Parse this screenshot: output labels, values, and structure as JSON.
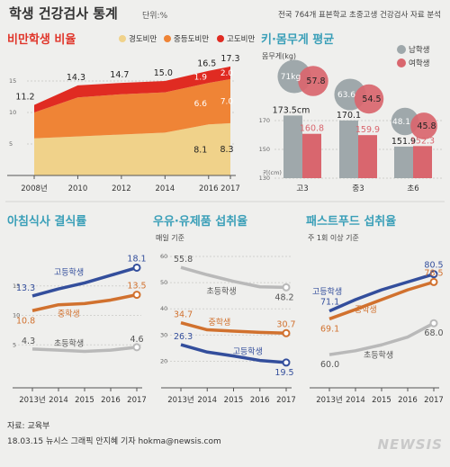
{
  "header": {
    "title": "학생 건강검사 통계",
    "unit": "단위:%",
    "source_note": "전국 764개 표본학교 초중고생 건강검사 자료 분석"
  },
  "footer": {
    "source": "자료: 교육부",
    "credit": "18.03.15 뉴시스 그래픽 안지혜 기자 hokma@newsis.com",
    "logo": "NEWSIS"
  },
  "colors": {
    "light": "#f0d28a",
    "mid": "#ef8436",
    "high": "#e02b22",
    "boys": "#9fa8ab",
    "girls": "#d9666e",
    "blue": "#334e9c",
    "orange": "#d1712e",
    "gray": "#b9b9b9",
    "cyan": "#2aa4c5",
    "pink": "#c95a62"
  },
  "chart_data": [
    {
      "id": "obesity",
      "type": "area",
      "title": "비만학생 비율",
      "x": [
        "2008년",
        "2010",
        "2012",
        "2014",
        "2016",
        "2017"
      ],
      "x_years": [
        2008,
        2010,
        2012,
        2014,
        2016,
        2017
      ],
      "stacked": true,
      "series": [
        {
          "name": "경도비만",
          "values": [
            5.9,
            6.2,
            6.5,
            6.8,
            8.1,
            8.3
          ]
        },
        {
          "name": "중등도비만",
          "values": [
            4.1,
            6.2,
            6.4,
            6.4,
            6.6,
            7.0
          ]
        },
        {
          "name": "고도비만",
          "values": [
            1.2,
            1.9,
            1.8,
            1.8,
            1.9,
            2.0
          ]
        }
      ],
      "totals": [
        11.2,
        14.3,
        14.7,
        15.0,
        16.5,
        17.3
      ],
      "total_labels": [
        "11.2",
        "14.3",
        "14.7",
        "15.0",
        "16.5",
        "17.3"
      ],
      "value_labels_2016": [
        "8.1",
        "6.6",
        "1.9"
      ],
      "value_labels_2017": [
        "8.3",
        "7.0",
        "2.0"
      ],
      "yticks": [
        5,
        10,
        15
      ],
      "ylim": [
        0,
        20
      ],
      "legend_position": "top"
    },
    {
      "id": "weight_height",
      "type": "bar",
      "title": "키·몸무게 평균",
      "subtitle": "몸무게(kg)",
      "height_unit": "키(cm)",
      "categories": [
        "고3",
        "중3",
        "초6"
      ],
      "height": {
        "boys": [
          173.5,
          170.1,
          151.9
        ],
        "girls": [
          160.8,
          159.9,
          152.3
        ],
        "boys_labels": [
          "173.5cm",
          "170.1",
          "151.9"
        ],
        "girls_labels": [
          "160.8",
          "159.9",
          "152.3"
        ]
      },
      "weight": {
        "boys": [
          71,
          63.6,
          48.1
        ],
        "girls": [
          57.8,
          54.5,
          45.8
        ],
        "boys_labels": [
          "71kg",
          "63.6",
          "48.1"
        ],
        "girls_labels": [
          "57.8",
          "54.5",
          "45.8"
        ]
      },
      "yticks": [
        130,
        150,
        170
      ],
      "ylim": [
        130,
        180
      ],
      "legend": [
        "남학생",
        "여학생"
      ],
      "legend_position": "top-right"
    },
    {
      "id": "breakfast",
      "type": "line",
      "title": "아침식사 결식률",
      "x": [
        "2013년",
        "2014",
        "2015",
        "2016",
        "2017"
      ],
      "series": [
        {
          "name": "고등학생",
          "values": [
            13.3,
            14.5,
            15.5,
            16.8,
            18.1
          ],
          "labels": [
            "13.3",
            "18.1"
          ]
        },
        {
          "name": "중학생",
          "values": [
            10.8,
            11.8,
            12.0,
            12.6,
            13.5
          ],
          "labels": [
            "10.8",
            "13.5"
          ]
        },
        {
          "name": "초등학생",
          "values": [
            4.3,
            4.1,
            3.9,
            4.1,
            4.6
          ],
          "labels": [
            "4.3",
            "4.6"
          ]
        }
      ],
      "yticks": [
        5,
        10,
        15
      ],
      "ylim": [
        0,
        20
      ]
    },
    {
      "id": "milk",
      "type": "line",
      "title": "우유·유제품 섭취율",
      "subtitle": "매일 기준",
      "x": [
        "2013년",
        "2014",
        "2015",
        "2016",
        "2017"
      ],
      "series": [
        {
          "name": "초등학생",
          "values": [
            55.8,
            53.0,
            50.5,
            48.4,
            48.2
          ],
          "labels": [
            "55.8",
            "48.2"
          ]
        },
        {
          "name": "중학생",
          "values": [
            34.7,
            32.0,
            31.5,
            31.0,
            30.7
          ],
          "labels": [
            "34.7",
            "30.7"
          ]
        },
        {
          "name": "고등학생",
          "values": [
            26.3,
            23.5,
            22.0,
            20.3,
            19.5
          ],
          "labels": [
            "26.3",
            "19.5"
          ]
        }
      ],
      "yticks": [
        20,
        30,
        40,
        50,
        60
      ],
      "ylim": [
        15,
        60
      ]
    },
    {
      "id": "fastfood",
      "type": "line",
      "title": "패스트푸드 섭취율",
      "subtitle": "주 1회 이상 기준",
      "x": [
        "2013년",
        "2014",
        "2015",
        "2016",
        "2017"
      ],
      "series": [
        {
          "name": "고등학생",
          "values": [
            71.1,
            74.0,
            76.5,
            78.5,
            80.5
          ],
          "labels": [
            "71.1",
            "80.5"
          ]
        },
        {
          "name": "중학생",
          "values": [
            69.1,
            71.5,
            74.0,
            76.5,
            78.5
          ],
          "labels": [
            "69.1",
            "78.5"
          ]
        },
        {
          "name": "초등학생",
          "values": [
            60.0,
            61.0,
            62.5,
            64.5,
            68.0
          ],
          "labels": [
            "60.0",
            "68.0"
          ]
        }
      ],
      "ylim": [
        55,
        85
      ]
    }
  ]
}
